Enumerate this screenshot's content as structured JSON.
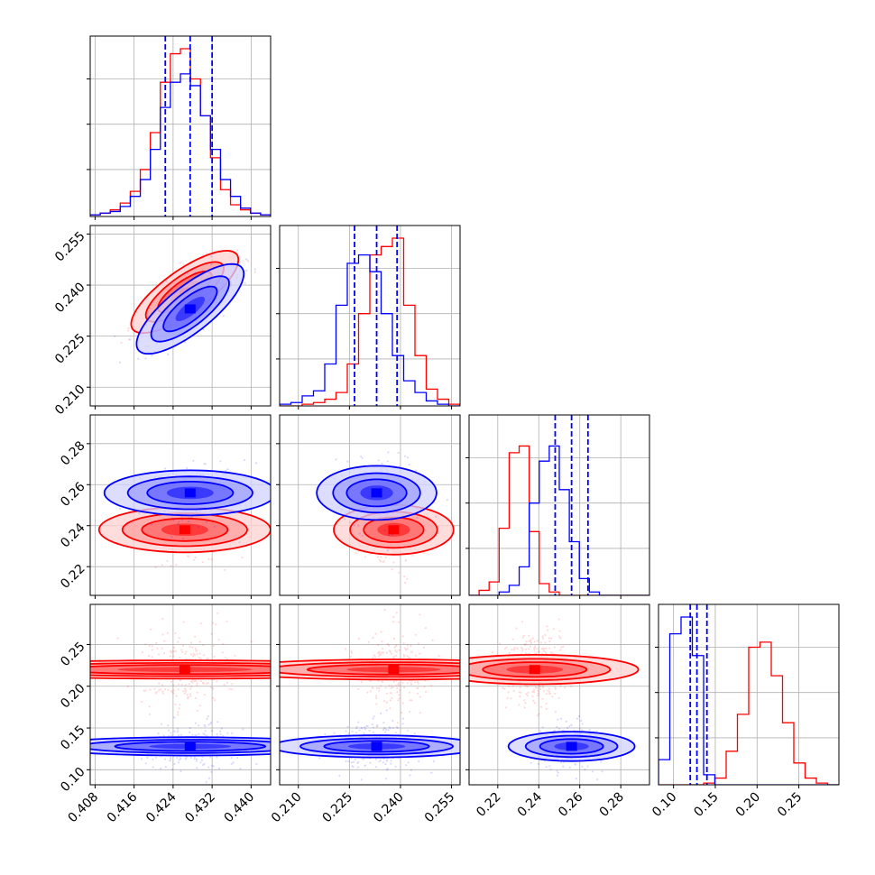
{
  "chart_data": {
    "type": "corner",
    "grid": true,
    "series": [
      {
        "color": "#ff0000",
        "means": [
          0.4264,
          0.238,
          0.238,
          0.22
        ],
        "sds": [
          0.005,
          0.0055,
          0.008,
          0.023
        ]
      },
      {
        "color": "#0000ff",
        "means": [
          0.4275,
          0.233,
          0.256,
          0.128
        ],
        "sds": [
          0.005,
          0.006,
          0.008,
          0.014
        ]
      }
    ],
    "correlations": [
      {
        "pair": [
          0,
          1
        ],
        "rho": 0.78
      },
      {
        "pair": [
          0,
          2
        ],
        "rho": 0.0
      },
      {
        "pair": [
          0,
          3
        ],
        "rho": 0.0
      },
      {
        "pair": [
          1,
          2
        ],
        "rho": 0.0
      },
      {
        "pair": [
          1,
          3
        ],
        "rho": 0.0
      },
      {
        "pair": [
          2,
          3
        ],
        "rho": 0.0
      }
    ],
    "quantile_lines": {
      "color": "#0000ff",
      "params": [
        [
          0.4224,
          0.4275,
          0.432
        ],
        [
          0.2265,
          0.233,
          0.239
        ],
        [
          0.248,
          0.256,
          0.264
        ],
        [
          0.12,
          0.128,
          0.14
        ]
      ]
    },
    "histograms": [
      {
        "param": 0,
        "range": [
          0.407,
          0.444
        ],
        "red": [
          0.01,
          0.02,
          0.04,
          0.08,
          0.15,
          0.28,
          0.5,
          0.8,
          0.97,
          1.0,
          0.82,
          0.6,
          0.35,
          0.16,
          0.07,
          0.04,
          0.02,
          0.01
        ],
        "blue": [
          0.01,
          0.02,
          0.03,
          0.06,
          0.12,
          0.22,
          0.4,
          0.65,
          0.8,
          0.85,
          0.78,
          0.6,
          0.4,
          0.22,
          0.12,
          0.05,
          0.02,
          0.01
        ]
      },
      {
        "param": 1,
        "range": [
          0.2045,
          0.2575
        ],
        "red": [
          0.0,
          0.0,
          0.01,
          0.02,
          0.04,
          0.08,
          0.25,
          0.55,
          0.9,
          0.95,
          1.0,
          0.6,
          0.3,
          0.1,
          0.04,
          0.01
        ],
        "blue": [
          0.01,
          0.02,
          0.06,
          0.09,
          0.25,
          0.6,
          0.85,
          0.9,
          0.8,
          0.55,
          0.3,
          0.15,
          0.08,
          0.03,
          0.01,
          0.0
        ]
      },
      {
        "param": 2,
        "range": [
          0.206,
          0.294
        ],
        "red": [
          0.0,
          0.03,
          0.08,
          0.4,
          0.85,
          0.89,
          0.38,
          0.07,
          0.02,
          0.0,
          0.0,
          0.0,
          0.0,
          0.0,
          0.0,
          0.0,
          0.0,
          0.0
        ],
        "blue": [
          0.0,
          0.0,
          0.0,
          0.02,
          0.06,
          0.17,
          0.55,
          0.8,
          0.89,
          0.63,
          0.32,
          0.1,
          0.02,
          0.0,
          0.0,
          0.0,
          0.0,
          0.0
        ]
      },
      {
        "param": 3,
        "range": [
          0.082,
          0.298
        ],
        "red": [
          0.0,
          0.0,
          0.0,
          0.0,
          0.01,
          0.04,
          0.2,
          0.42,
          0.82,
          0.85,
          0.65,
          0.37,
          0.13,
          0.04,
          0.01,
          0.0
        ],
        "blue": [
          0.15,
          0.9,
          1.0,
          0.77,
          0.06,
          0.0,
          0.0,
          0.0,
          0.0,
          0.0,
          0.0,
          0.0,
          0.0,
          0.0,
          0.0,
          0.0
        ]
      }
    ],
    "axes": [
      {
        "range": [
          0.407,
          0.444
        ],
        "ticks": [
          0.408,
          0.416,
          0.424,
          0.432,
          0.44
        ],
        "tick_labels": [
          "0.408",
          "0.416",
          "0.424",
          "0.432",
          "0.440"
        ]
      },
      {
        "range": [
          0.2045,
          0.2575
        ],
        "ticks": [
          0.21,
          0.225,
          0.24,
          0.255
        ],
        "tick_labels": [
          "0.210",
          "0.225",
          "0.240",
          "0.255"
        ]
      },
      {
        "range": [
          0.206,
          0.294
        ],
        "ticks": [
          0.22,
          0.24,
          0.26,
          0.28
        ],
        "tick_labels": [
          "0.22",
          "0.24",
          "0.26",
          "0.28"
        ]
      },
      {
        "range": [
          0.082,
          0.298
        ],
        "ticks": [
          0.1,
          0.15,
          0.2,
          0.25
        ],
        "tick_labels": [
          "0.10",
          "0.15",
          "0.20",
          "0.25"
        ]
      }
    ]
  }
}
